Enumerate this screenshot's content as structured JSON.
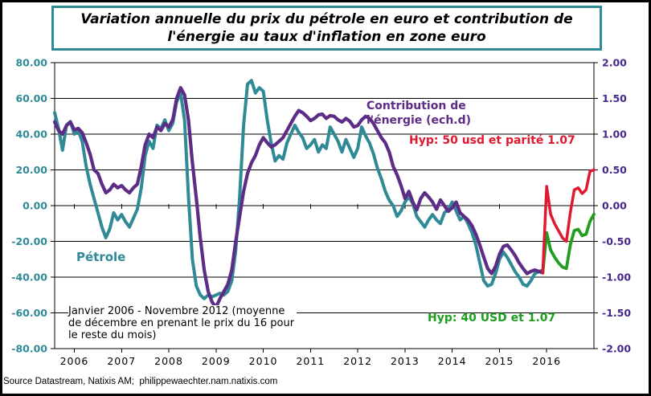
{
  "page": {
    "source_line": "Source Datastream, Natixis AM;  philippewaechter.nam.natixis.com"
  },
  "title": {
    "full": "Variation annuelle du prix du pétrole en euro et contribution de l'énergie au taux d'inflation en zone euro",
    "line1": "Variation annuelle du prix du pétrole en euro et contribution de",
    "line2": "l'énergie au taux d'inflation en zone euro"
  },
  "labels": {
    "petrole": "Pétrole",
    "contribution_line1": "Contribution de",
    "contribution_line2": "l'énergie (ech.d)",
    "hyp50": "Hyp: 50 usd et parité 1.07",
    "hyp40": "Hyp: 40 USD et 1.07",
    "note": "Janvier 2006 - Novembre 2012 (moyenne de décembre en prenant le prix du 16 pour le reste du mois)"
  },
  "colors": {
    "petrole": "#2F8A96",
    "contribution": "#5C2C86",
    "hyp50": "#E01931",
    "hyp40": "#1F9E1F",
    "left_axis_text": "#2F8A96",
    "right_axis_text": "#46278C",
    "title_border": "#2E8B96",
    "grid": "#000000"
  },
  "chart_data": {
    "type": "line",
    "title": "Variation annuelle du prix du pétrole en euro et contribution de l'énergie au taux d'inflation en zone euro",
    "x_axis": {
      "start": "2006-01",
      "frequency": "monthly",
      "tick_labels": [
        "2006",
        "2007",
        "2008",
        "2009",
        "2010",
        "2011",
        "2012",
        "2013",
        "2014",
        "2015",
        "2016"
      ]
    },
    "y_axis_left": {
      "min": -80,
      "max": 80,
      "ticks": [
        80,
        60,
        40,
        20,
        0,
        -20,
        -40,
        -60,
        -80
      ],
      "tick_labels": [
        "80.00",
        "60.00",
        "40.00",
        "20.00",
        "0.00",
        "-20.00",
        "-40.00",
        "-60.00",
        "-80.00"
      ],
      "color": "#2F8A96",
      "series_label": "Pétrole"
    },
    "y_axis_right": {
      "min": -2,
      "max": 2,
      "ticks": [
        2,
        1.5,
        1,
        0.5,
        0,
        -0.5,
        -1,
        -1.5,
        -2
      ],
      "tick_labels": [
        "2.00",
        "1.50",
        "1.00",
        "0.50",
        "0.00",
        "-0.50",
        "-1.00",
        "-1.50",
        "-2.00"
      ],
      "color": "#46278C",
      "series_label": "Contribution de l'énergie (ech.d)"
    },
    "grid": "horizontal",
    "legend_position": "inline-annotations",
    "series": [
      {
        "id": "petrole",
        "name": "Pétrole",
        "axis": "left",
        "color": "#2F8A96",
        "stroke_width": 4,
        "start_month_index": 0,
        "values": [
          52,
          43,
          31,
          45,
          47,
          40,
          42,
          36,
          22,
          12,
          4,
          -4,
          -12,
          -18,
          -13,
          -4,
          -8,
          -5,
          -9,
          -12,
          -7,
          -2,
          10,
          28,
          36,
          32,
          45,
          43,
          48,
          42,
          46,
          58,
          63,
          48,
          5,
          -30,
          -45,
          -50,
          -52,
          -50,
          -51,
          -50,
          -49,
          -50,
          -48,
          -42,
          -25,
          5,
          45,
          68,
          70,
          63,
          66,
          64,
          48,
          35,
          25,
          28,
          26,
          35,
          40,
          45,
          41,
          38,
          32,
          34,
          37,
          30,
          34,
          32,
          44,
          40,
          36,
          30,
          37,
          32,
          27,
          32,
          44,
          39,
          35,
          29,
          21,
          15,
          8,
          3,
          0,
          -6,
          -3,
          2,
          5,
          1,
          -6,
          -9,
          -12,
          -8,
          -5,
          -8,
          -10,
          -4,
          -2,
          2,
          -3,
          -8,
          -6,
          -10,
          -15,
          -22,
          -32,
          -42,
          -45,
          -44,
          -38,
          -30,
          -26,
          -29,
          -33,
          -37,
          -40,
          -44,
          -45,
          -42,
          -38,
          -37,
          -36
        ]
      },
      {
        "id": "contribution",
        "name": "Contribution de l'énergie (ech.d)",
        "axis": "right",
        "color": "#5C2C86",
        "stroke_width": 4.2,
        "start_month_index": 0,
        "values": [
          1.17,
          1.05,
          1.0,
          1.12,
          1.17,
          1.06,
          1.08,
          1.02,
          0.88,
          0.72,
          0.5,
          0.45,
          0.3,
          0.18,
          0.22,
          0.3,
          0.25,
          0.28,
          0.22,
          0.18,
          0.25,
          0.3,
          0.55,
          0.85,
          1.0,
          0.95,
          1.1,
          1.05,
          1.15,
          1.1,
          1.2,
          1.5,
          1.65,
          1.55,
          1.2,
          0.6,
          0.1,
          -0.45,
          -0.9,
          -1.2,
          -1.35,
          -1.42,
          -1.3,
          -1.2,
          -1.1,
          -0.9,
          -0.5,
          -0.15,
          0.2,
          0.45,
          0.6,
          0.7,
          0.85,
          0.95,
          0.88,
          0.82,
          0.85,
          0.9,
          0.95,
          1.05,
          1.15,
          1.25,
          1.33,
          1.3,
          1.25,
          1.19,
          1.22,
          1.27,
          1.28,
          1.22,
          1.26,
          1.25,
          1.2,
          1.17,
          1.22,
          1.18,
          1.1,
          1.12,
          1.2,
          1.25,
          1.22,
          1.15,
          1.05,
          0.95,
          0.88,
          0.75,
          0.55,
          0.43,
          0.28,
          0.1,
          0.2,
          0.05,
          -0.06,
          0.1,
          0.18,
          0.12,
          0.05,
          -0.05,
          0.08,
          0.0,
          -0.08,
          -0.03,
          0.05,
          -0.1,
          -0.15,
          -0.2,
          -0.28,
          -0.4,
          -0.55,
          -0.72,
          -0.88,
          -0.95,
          -0.85,
          -0.68,
          -0.57,
          -0.55,
          -0.62,
          -0.7,
          -0.8,
          -0.88,
          -0.95,
          -0.92,
          -0.9,
          -0.92,
          -0.94
        ]
      },
      {
        "id": "hyp40",
        "name": "Hyp: 40 USD et 1.07",
        "axis": "right",
        "color": "#1F9E1F",
        "stroke_width": 3.8,
        "start_month_index": 124,
        "values": [
          -0.94,
          -0.38,
          -0.62,
          -0.72,
          -0.8,
          -0.86,
          -0.88,
          -0.55,
          -0.35,
          -0.33,
          -0.42,
          -0.4,
          -0.22,
          -0.12
        ]
      },
      {
        "id": "hyp50",
        "name": "Hyp: 50 usd et parité 1.07",
        "axis": "right",
        "color": "#E01931",
        "stroke_width": 3.5,
        "start_month_index": 124,
        "values": [
          -0.94,
          0.27,
          -0.12,
          -0.25,
          -0.35,
          -0.45,
          -0.5,
          -0.1,
          0.22,
          0.25,
          0.17,
          0.22,
          0.48,
          0.5
        ]
      }
    ],
    "annotations": [
      {
        "text": "Pétrole",
        "color": "#2F8A96"
      },
      {
        "text": "Contribution de l'énergie (ech.d)",
        "color": "#5C2C86"
      },
      {
        "text": "Hyp: 50 usd et parité 1.07",
        "color": "#E01931"
      },
      {
        "text": "Hyp: 40 USD et 1.07",
        "color": "#1F9E1F"
      },
      {
        "text": "Janvier 2006 - Novembre 2012 (moyenne de décembre en prenant le prix du 16 pour le reste du mois)",
        "color": "#000000"
      }
    ]
  }
}
